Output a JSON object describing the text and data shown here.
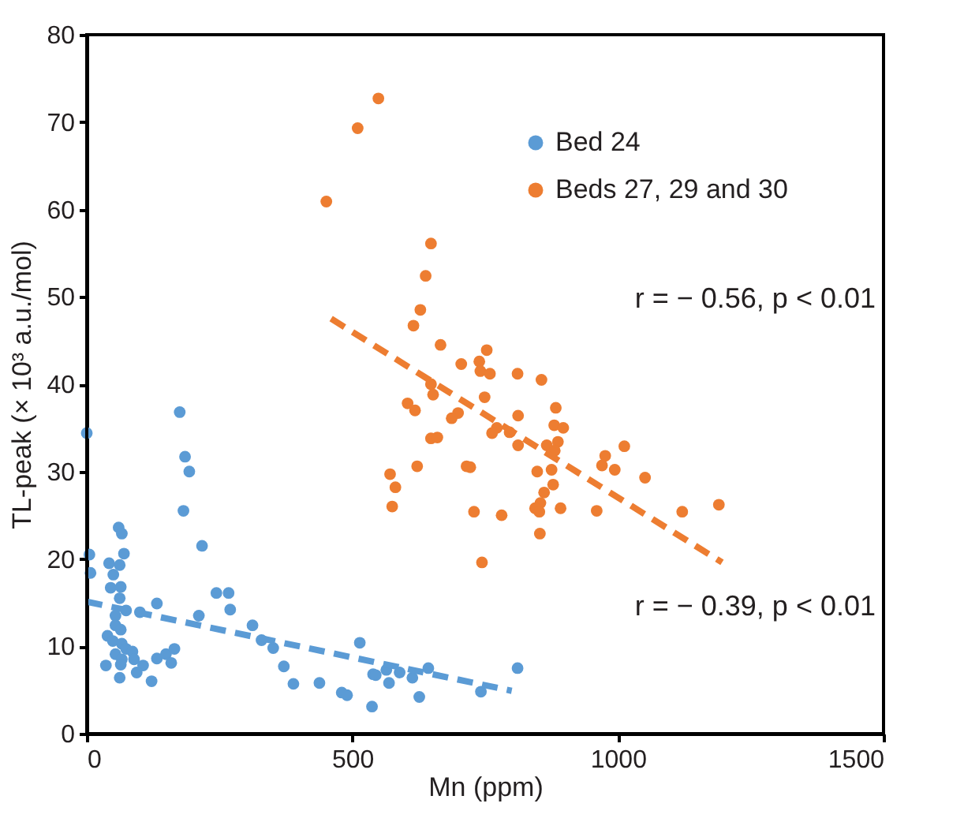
{
  "chart_data": {
    "type": "scatter",
    "xlabel": "Mn (ppm)",
    "ylabel": "TL-peak (× 10³ a.u./mol)",
    "xlim": [
      0,
      1500
    ],
    "ylim": [
      0,
      80
    ],
    "xticks": [
      0,
      500,
      1000,
      1500
    ],
    "yticks": [
      0,
      10,
      20,
      30,
      40,
      50,
      60,
      70,
      80
    ],
    "grid": false,
    "legend": "top right",
    "annotations": [
      "r = − 0.56, p < 0.01",
      "r = − 0.39, p < 0.01"
    ],
    "series": [
      {
        "name": "Bed 24",
        "color": "#5b9bd5",
        "marker": "circle",
        "x": [
          0,
          175,
          185,
          193,
          182,
          217,
          5,
          7,
          60,
          66,
          70,
          42,
          62,
          50,
          45,
          64,
          62,
          132,
          74,
          100,
          54,
          54,
          64,
          39,
          49,
          66,
          74,
          86,
          54,
          66,
          89,
          36,
          64,
          106,
          94,
          62,
          122,
          132,
          149,
          165,
          159,
          211,
          244,
          267,
          270,
          312,
          329,
          351,
          371,
          389,
          438,
          480,
          490,
          514,
          539,
          537,
          544,
          564,
          569,
          589,
          613,
          643,
          626,
          742,
          811
        ],
        "values": [
          34.4,
          36.8,
          31.7,
          30,
          25.5,
          21.5,
          20.5,
          18.4,
          23.6,
          22.9,
          20.6,
          19.5,
          19.3,
          18.2,
          16.7,
          16.8,
          15.5,
          14.9,
          14.1,
          13.9,
          13.5,
          12.4,
          11.9,
          11.2,
          10.6,
          10.3,
          9.7,
          9.4,
          9.1,
          8.5,
          8.5,
          7.8,
          7.9,
          7.8,
          7.0,
          6.4,
          6.0,
          8.6,
          9.1,
          9.7,
          8.1,
          13.5,
          16.1,
          16.1,
          14.2,
          12.4,
          10.7,
          9.8,
          7.7,
          5.7,
          5.8,
          4.7,
          4.4,
          10.4,
          6.8,
          3.1,
          6.7,
          7.3,
          5.8,
          7.0,
          6.4,
          7.5,
          4.2,
          4.8,
          7.5
        ]
      },
      {
        "name": "Beds 27, 29 and 30",
        "color": "#ed7d31",
        "marker": "circle",
        "x": [
          510,
          549,
          451,
          648,
          638,
          628,
          615,
          666,
          705,
          753,
          739,
          741,
          759,
          811,
          856,
          648,
          652,
          604,
          618,
          699,
          687,
          749,
          812,
          883,
          880,
          897,
          772,
          763,
          796,
          648,
          660,
          812,
          866,
          887,
          881,
          622,
          571,
          581,
          575,
          715,
          722,
          848,
          875,
          878,
          861,
          854,
          844,
          852,
          892,
          729,
          781,
          853,
          744,
          976,
          970,
          994,
          1012,
          960,
          1051,
          1121,
          1190
        ],
        "values": [
          69.3,
          72.7,
          60.9,
          56.1,
          52.4,
          48.5,
          46.7,
          44.5,
          42.3,
          43.9,
          42.6,
          41.5,
          41.2,
          41.2,
          40.5,
          40.0,
          38.8,
          37.8,
          37.0,
          36.7,
          36.1,
          38.5,
          36.4,
          37.3,
          35.3,
          35.0,
          35.0,
          34.4,
          34.5,
          33.8,
          33.9,
          33.0,
          33.0,
          33.4,
          32.4,
          30.6,
          29.7,
          28.2,
          26.0,
          30.6,
          30.5,
          30.0,
          30.2,
          28.5,
          27.6,
          26.4,
          25.8,
          25.4,
          25.8,
          25.4,
          25.0,
          22.9,
          19.6,
          31.8,
          30.7,
          30.2,
          32.9,
          25.5,
          29.3,
          25.4,
          26.2
        ]
      },
      {
        "color": "#5b9bd5",
        "type": "line",
        "line_style": "dashed",
        "x": [
          0,
          800
        ],
        "values": [
          15.1,
          4.9
        ]
      },
      {
        "color": "#ed7d31",
        "type": "line",
        "line_style": "dashed",
        "x": [
          460,
          1196
        ],
        "values": [
          47.5,
          19.6
        ]
      }
    ]
  }
}
